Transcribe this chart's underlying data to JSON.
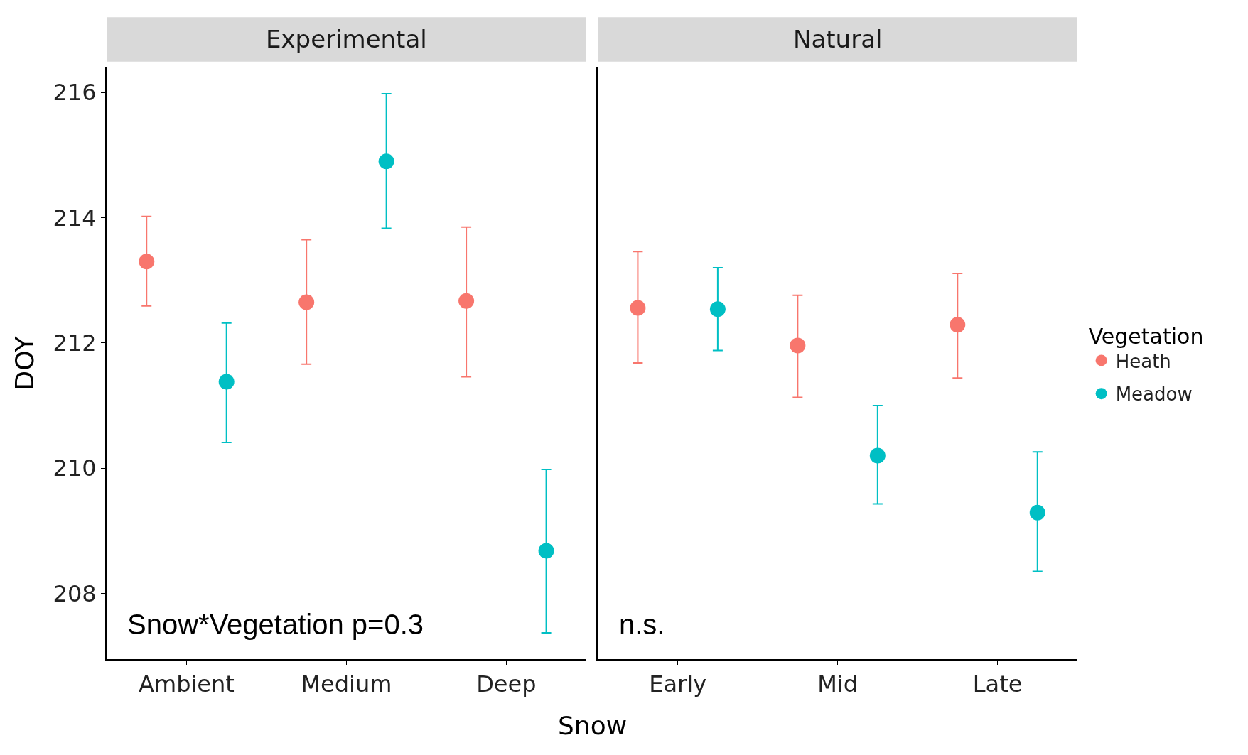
{
  "chart_data": [
    {
      "type": "scatter",
      "title": "Experimental",
      "xlabel": "Snow",
      "ylabel": "DOY",
      "legend_title": "Vegetation",
      "categories": [
        "Ambient",
        "Medium",
        "Deep"
      ],
      "ylim": [
        206.95,
        216.4
      ],
      "yticks": [
        208,
        210,
        212,
        214,
        216
      ],
      "marker": "circle",
      "legend": "right",
      "annotations": [
        "Snow*Vegetation p=0.3"
      ],
      "series": [
        {
          "name": "Heath",
          "color": "#f8766d",
          "values": [
            213.3,
            212.65,
            212.67
          ],
          "errors": [
            [
              212.59,
              214.02
            ],
            [
              211.66,
              213.65
            ],
            [
              211.46,
              213.85
            ]
          ]
        },
        {
          "name": "Meadow",
          "color": "#00bfc4",
          "values": [
            211.38,
            214.9,
            208.68
          ],
          "errors": [
            [
              210.41,
              212.32
            ],
            [
              213.83,
              215.98
            ],
            [
              207.37,
              209.98
            ]
          ]
        }
      ]
    },
    {
      "type": "scatter",
      "title": "Natural",
      "categories": [
        "Early",
        "Mid",
        "Late"
      ],
      "ylim": [
        206.95,
        216.4
      ],
      "yticks": [
        208,
        210,
        212,
        214,
        216
      ],
      "tick_labels": "x",
      "marker": "circle",
      "legend": "right",
      "annotations": [
        "n.s."
      ],
      "series": [
        {
          "name": "Heath",
          "color": "#f8766d",
          "values": [
            212.56,
            211.96,
            212.29
          ],
          "errors": [
            [
              211.68,
              213.46
            ],
            [
              211.13,
              212.76
            ],
            [
              211.44,
              213.11
            ]
          ]
        },
        {
          "name": "Meadow",
          "color": "#00bfc4",
          "values": [
            212.54,
            210.2,
            209.29
          ],
          "errors": [
            [
              211.88,
              213.2
            ],
            [
              209.43,
              211.0
            ],
            [
              208.35,
              210.26
            ]
          ]
        }
      ]
    }
  ]
}
